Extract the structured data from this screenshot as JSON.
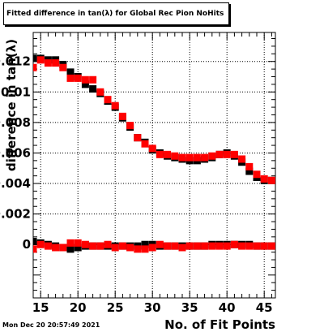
{
  "title": "Fitted difference in tan(λ) for Global Rec Pion NoHits",
  "timestamp": "Mon Dec 20 20:57:49 2021",
  "chart_data": {
    "type": "scatter",
    "xlabel": "No. of Fit Points",
    "ylabel": "difference in tan(λ)",
    "xlim": [
      14,
      46.5
    ],
    "ylim": [
      -0.0035,
      0.0139
    ],
    "x_ticks": [
      15,
      20,
      25,
      30,
      35,
      40,
      45
    ],
    "x_tick_labels": [
      "15",
      "20",
      "25",
      "30",
      "35",
      "40",
      "45"
    ],
    "y_ticks": [
      0,
      0.002,
      0.004,
      0.006,
      0.008,
      0.01,
      0.012
    ],
    "y_tick_labels": [
      "0",
      "0.002",
      "0.004",
      "0.006",
      "0.008",
      "0.01",
      "0.012"
    ],
    "grid": true,
    "x": [
      14,
      15,
      16,
      17,
      18,
      19,
      20,
      21,
      22,
      23,
      24,
      25,
      26,
      27,
      28,
      29,
      30,
      31,
      32,
      33,
      34,
      35,
      36,
      37,
      38,
      39,
      40,
      41,
      42,
      43,
      44,
      45,
      46
    ],
    "series": [
      {
        "color": "#000000",
        "values": [
          0.0122,
          0.0122,
          0.0121,
          0.0121,
          0.0118,
          0.0113,
          0.011,
          0.0105,
          0.0102,
          0.0099,
          0.0094,
          0.009,
          0.0083,
          0.0077,
          0.007,
          0.0067,
          0.0062,
          0.006,
          0.0058,
          0.0057,
          0.0056,
          0.0055,
          0.0055,
          0.0056,
          0.0057,
          0.0059,
          0.006,
          0.0058,
          0.0054,
          0.0048,
          0.0044,
          0.0042,
          0.0042
        ]
      },
      {
        "color": "#ff0000",
        "values": [
          0.0116,
          0.0121,
          0.0119,
          0.0119,
          0.0116,
          0.0109,
          0.0109,
          0.0108,
          0.0108,
          0.01,
          0.0095,
          0.0091,
          0.0084,
          0.0078,
          0.007,
          0.0066,
          0.0063,
          0.0059,
          0.0059,
          0.0058,
          0.0057,
          0.0057,
          0.0057,
          0.0057,
          0.0058,
          0.0059,
          0.0059,
          0.0059,
          0.0056,
          0.0051,
          0.0046,
          0.0043,
          0.0042
        ]
      },
      {
        "color": "#000000",
        "values": [
          0.0002,
          0.0001,
          0.0,
          -0.0001,
          -0.0002,
          -0.0003,
          -0.0002,
          -0.0001,
          -0.0001,
          -0.0001,
          -0.0001,
          -0.0001,
          -0.0001,
          -0.0001,
          -0.0001,
          0.0,
          0.0,
          -0.0001,
          -0.0001,
          -0.0001,
          -0.0001,
          -0.0001,
          -0.0001,
          -0.0001,
          0.0,
          0.0,
          0.0,
          0.0,
          0.0,
          0.0,
          -0.0001,
          -0.0001,
          -0.0001
        ]
      },
      {
        "color": "#ff0000",
        "values": [
          -0.0003,
          0.0,
          -0.0001,
          -0.0002,
          -0.0002,
          0.0001,
          0.0001,
          0.0,
          -0.0001,
          -0.0001,
          0.0,
          -0.0002,
          -0.0001,
          -0.0002,
          -0.0003,
          -0.0003,
          -0.0002,
          0.0,
          -0.0001,
          -0.0001,
          -0.0002,
          -0.0001,
          -0.0001,
          -0.0001,
          -0.0001,
          -0.0001,
          -0.0001,
          0.0,
          -0.0001,
          -0.0001,
          -0.0001,
          -0.0001,
          -0.0001
        ]
      }
    ]
  }
}
